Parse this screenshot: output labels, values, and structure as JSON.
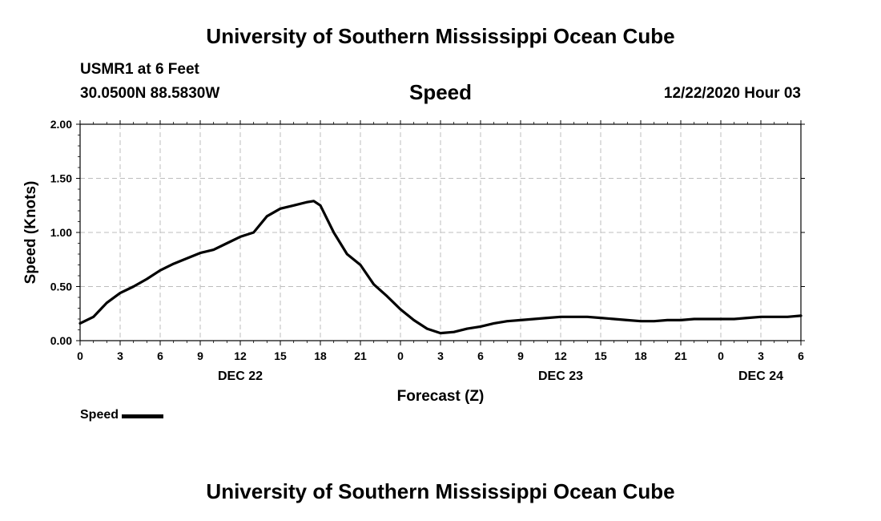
{
  "header": {
    "org_title": "University of Southern Mississippi Ocean Cube",
    "station": "USMR1 at 6 Feet",
    "coords": "30.0500N 88.5830W",
    "plot_title": "Speed",
    "timestamp": "12/22/2020 Hour 03"
  },
  "footer": {
    "org_title": "University of Southern Mississippi Ocean Cube"
  },
  "chart_data": {
    "type": "line",
    "title": "Speed",
    "xlabel": "Forecast (Z)",
    "ylabel": "Speed (Knots)",
    "ylim": [
      0,
      2
    ],
    "xlim": [
      0,
      54
    ],
    "grid": true,
    "y_ticks": [
      "0.00",
      "0.50",
      "1.00",
      "1.50",
      "2.00"
    ],
    "y_tick_values": [
      0,
      0.5,
      1.0,
      1.5,
      2.0
    ],
    "x_ticks": [
      "0",
      "3",
      "6",
      "9",
      "12",
      "15",
      "18",
      "21",
      "0",
      "3",
      "6",
      "9",
      "12",
      "15",
      "18",
      "21",
      "0",
      "3",
      "6"
    ],
    "x_tick_hours": [
      0,
      3,
      6,
      9,
      12,
      15,
      18,
      21,
      24,
      27,
      30,
      33,
      36,
      39,
      42,
      45,
      48,
      51,
      54
    ],
    "date_labels": [
      {
        "label": "DEC 22",
        "hour": 12
      },
      {
        "label": "DEC 23",
        "hour": 36
      },
      {
        "label": "DEC 24",
        "hour": 51
      }
    ],
    "legend": [
      {
        "name": "Speed",
        "color": "#000000"
      }
    ],
    "series": [
      {
        "name": "Speed",
        "color": "#000000",
        "x": [
          0,
          1,
          2,
          3,
          4,
          5,
          6,
          7,
          8,
          9,
          10,
          11,
          12,
          13,
          14,
          15,
          16,
          17,
          17.5,
          18,
          19,
          20,
          21,
          22,
          23,
          24,
          25,
          26,
          27,
          28,
          29,
          30,
          31,
          32,
          33,
          34,
          35,
          36,
          37,
          38,
          39,
          40,
          41,
          42,
          43,
          44,
          45,
          46,
          47,
          48,
          49,
          50,
          51,
          52,
          53,
          54
        ],
        "values": [
          0.16,
          0.22,
          0.35,
          0.44,
          0.5,
          0.57,
          0.65,
          0.71,
          0.76,
          0.81,
          0.84,
          0.9,
          0.96,
          1.0,
          1.15,
          1.22,
          1.25,
          1.28,
          1.29,
          1.25,
          1.0,
          0.8,
          0.7,
          0.52,
          0.41,
          0.29,
          0.19,
          0.11,
          0.07,
          0.08,
          0.11,
          0.13,
          0.16,
          0.18,
          0.19,
          0.2,
          0.21,
          0.22,
          0.22,
          0.22,
          0.21,
          0.2,
          0.19,
          0.18,
          0.18,
          0.19,
          0.19,
          0.2,
          0.2,
          0.2,
          0.2,
          0.21,
          0.22,
          0.22,
          0.22,
          0.23
        ]
      }
    ]
  }
}
